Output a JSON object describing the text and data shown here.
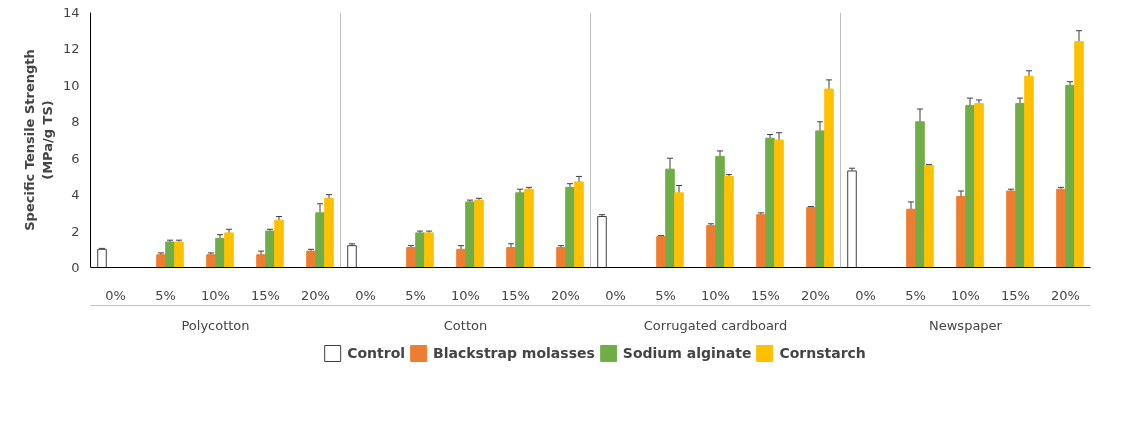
{
  "chart_data": {
    "type": "bar",
    "ylabel": "Specific Tensile Strength\n(MPa/g TS)",
    "categories": [
      "0%",
      "5%",
      "10%",
      "15%",
      "20%",
      "0%",
      "5%",
      "10%",
      "15%",
      "20%",
      "0%",
      "5%",
      "10%",
      "15%",
      "20%",
      "0%",
      "5%",
      "10%",
      "15%",
      "20%"
    ],
    "annotations": [
      "Polycotton",
      "Cotton",
      "Corrugated cardboard",
      "Newspaper"
    ],
    "series": [
      {
        "name": "Control",
        "color": "#ffffff",
        "values": [
          1.0,
          null,
          null,
          null,
          null,
          1.2,
          null,
          null,
          null,
          null,
          2.8,
          null,
          null,
          null,
          null,
          5.3,
          null,
          null,
          null,
          null
        ],
        "errors": [
          0.05,
          null,
          null,
          null,
          null,
          0.1,
          null,
          null,
          null,
          null,
          0.1,
          null,
          null,
          null,
          null,
          0.15,
          null,
          null,
          null,
          null
        ]
      },
      {
        "name": "Blackstrap molasses",
        "color": "#ed7d31",
        "values": [
          null,
          0.7,
          0.7,
          0.7,
          0.9,
          null,
          1.1,
          1.0,
          1.1,
          1.1,
          null,
          1.7,
          2.3,
          2.9,
          3.3,
          null,
          3.2,
          3.9,
          4.2,
          4.3
        ],
        "errors": [
          null,
          0.1,
          0.1,
          0.2,
          0.1,
          null,
          0.1,
          0.2,
          0.2,
          0.1,
          null,
          0.05,
          0.1,
          0.1,
          0.05,
          null,
          0.4,
          0.3,
          0.1,
          0.1
        ]
      },
      {
        "name": "Sodium alginate",
        "color": "#70ad47",
        "values": [
          null,
          1.4,
          1.6,
          2.0,
          3.0,
          null,
          1.9,
          3.6,
          4.1,
          4.4,
          null,
          5.4,
          6.1,
          7.1,
          7.5,
          null,
          8.0,
          8.9,
          9.0,
          10.0
        ],
        "errors": [
          null,
          0.1,
          0.2,
          0.1,
          0.5,
          null,
          0.1,
          0.1,
          0.2,
          0.2,
          null,
          0.6,
          0.3,
          0.2,
          0.5,
          null,
          0.7,
          0.4,
          0.3,
          0.2
        ]
      },
      {
        "name": "Cornstarch",
        "color": "#ffc000",
        "values": [
          null,
          1.4,
          1.9,
          2.6,
          3.8,
          null,
          1.9,
          3.7,
          4.3,
          4.7,
          null,
          4.1,
          5.0,
          7.0,
          9.8,
          null,
          5.6,
          9.0,
          10.5,
          12.4
        ],
        "errors": [
          null,
          0.1,
          0.2,
          0.2,
          0.2,
          null,
          0.1,
          0.1,
          0.1,
          0.3,
          null,
          0.4,
          0.1,
          0.4,
          0.5,
          null,
          0.05,
          0.2,
          0.3,
          0.6
        ]
      }
    ],
    "ylim": [
      0,
      14
    ],
    "yticks": [
      0,
      2,
      4,
      6,
      8,
      10,
      12,
      14
    ],
    "grid": false,
    "legend": "bottom"
  }
}
